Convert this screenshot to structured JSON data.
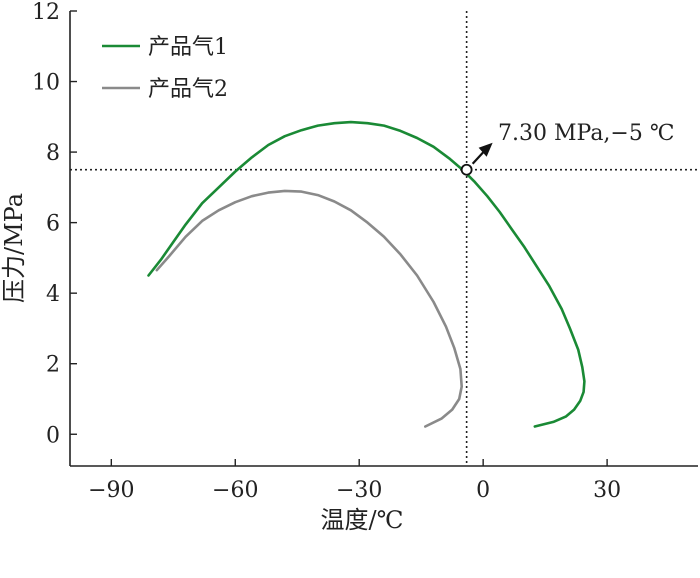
{
  "chart_data": {
    "type": "line",
    "xlabel": "温度/℃",
    "ylabel": "压力/MPa",
    "xlim": [
      -100,
      52
    ],
    "ylim": [
      -0.9,
      12
    ],
    "xticks": [
      -90,
      -60,
      -30,
      0,
      30
    ],
    "xtick_labels": [
      "−90",
      "−60",
      "−30",
      "0",
      "30"
    ],
    "yticks": [
      0,
      2,
      4,
      6,
      8,
      10,
      12
    ],
    "ytick_labels": [
      "0",
      "2",
      "4",
      "6",
      "8",
      "10",
      "12"
    ],
    "grid": false,
    "legend_position": "top-left",
    "series": [
      {
        "name": "产品气1",
        "color": "#1a8a35",
        "x": [
          -81,
          -78,
          -75,
          -72,
          -68,
          -64,
          -60,
          -56,
          -52,
          -48,
          -44,
          -40,
          -36,
          -32,
          -28,
          -24,
          -20,
          -16,
          -12,
          -8,
          -5,
          -2,
          1,
          4,
          7,
          10,
          13,
          16,
          19,
          21,
          23,
          24,
          24.5,
          24.3,
          23.5,
          22,
          20,
          17,
          12.5
        ],
        "y": [
          4.5,
          4.95,
          5.45,
          5.95,
          6.55,
          7.0,
          7.45,
          7.85,
          8.2,
          8.45,
          8.62,
          8.75,
          8.82,
          8.85,
          8.82,
          8.75,
          8.6,
          8.4,
          8.15,
          7.8,
          7.5,
          7.15,
          6.75,
          6.3,
          5.8,
          5.3,
          4.75,
          4.2,
          3.55,
          3.0,
          2.4,
          1.9,
          1.5,
          1.2,
          0.95,
          0.7,
          0.5,
          0.35,
          0.22
        ]
      },
      {
        "name": "产品气2",
        "color": "#8a8a8a",
        "x": [
          -79,
          -76,
          -72,
          -68,
          -64,
          -60,
          -56,
          -52,
          -48,
          -44,
          -40,
          -36,
          -32,
          -28,
          -24,
          -20,
          -16,
          -12,
          -9,
          -7,
          -5.5,
          -5.2,
          -5.8,
          -7.5,
          -10,
          -14
        ],
        "y": [
          4.65,
          5.05,
          5.6,
          6.05,
          6.35,
          6.58,
          6.75,
          6.85,
          6.9,
          6.88,
          6.78,
          6.6,
          6.35,
          6.0,
          5.6,
          5.1,
          4.5,
          3.75,
          3.05,
          2.45,
          1.85,
          1.35,
          1.0,
          0.7,
          0.45,
          0.22
        ]
      }
    ],
    "annotation": {
      "label": "7.30 MPa,−5 ℃",
      "x": -4,
      "y": 7.5
    }
  }
}
